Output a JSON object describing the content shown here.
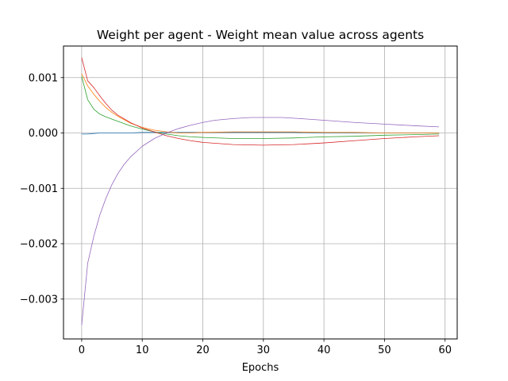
{
  "chart_data": {
    "type": "line",
    "title": "Weight per agent - Weight mean value across agents",
    "xlabel": "Epochs",
    "ylabel": "",
    "xlim": [
      -3,
      62
    ],
    "ylim": [
      -0.00372,
      0.00157
    ],
    "x_ticks": [
      0,
      10,
      20,
      30,
      40,
      50,
      60
    ],
    "x_tick_labels": [
      "0",
      "10",
      "20",
      "30",
      "40",
      "50",
      "60"
    ],
    "y_ticks": [
      -0.003,
      -0.002,
      -0.001,
      0.0,
      0.001
    ],
    "y_tick_labels": [
      "−0.003",
      "−0.002",
      "−0.001",
      "0.000",
      "0.001"
    ],
    "grid": true,
    "legend": "none",
    "series": [
      {
        "color": "#1f77b4",
        "x": [
          0,
          1,
          2,
          3,
          4,
          5,
          6,
          8,
          10,
          12,
          14,
          16,
          18,
          20,
          25,
          30,
          35,
          40,
          45,
          50,
          55,
          59
        ],
        "values": [
          -2e-05,
          -2e-05,
          -1e-05,
          0.0,
          0.0,
          0.0,
          0.0,
          0.0,
          1e-05,
          1e-05,
          1e-05,
          1e-05,
          1e-05,
          1e-05,
          1e-05,
          1e-05,
          1e-05,
          0.0,
          0.0,
          0.0,
          0.0,
          0.0
        ]
      },
      {
        "color": "#ff7f0e",
        "x": [
          0,
          1,
          2,
          3,
          4,
          5,
          6,
          8,
          10,
          12,
          14,
          16,
          18,
          20,
          25,
          30,
          35,
          40,
          45,
          50,
          55,
          59
        ],
        "values": [
          0.00107,
          0.00085,
          0.0007,
          0.00057,
          0.00046,
          0.00037,
          0.0003,
          0.00018,
          0.0001,
          5e-05,
          2e-05,
          0.0,
          0.0,
          1e-05,
          2e-05,
          2e-05,
          2e-05,
          1e-05,
          1e-05,
          0.0,
          0.0,
          0.0
        ]
      },
      {
        "color": "#2ca02c",
        "x": [
          0,
          1,
          2,
          3,
          4,
          5,
          6,
          8,
          10,
          12,
          14,
          16,
          18,
          20,
          25,
          30,
          35,
          40,
          45,
          50,
          55,
          59
        ],
        "values": [
          0.00102,
          0.0006,
          0.00043,
          0.00034,
          0.00029,
          0.00025,
          0.00021,
          0.00013,
          7e-05,
          2e-05,
          -2e-05,
          -5e-05,
          -7e-05,
          -8e-05,
          -0.0001,
          -0.0001,
          -9e-05,
          -7e-05,
          -6e-05,
          -4e-05,
          -3e-05,
          -2e-05
        ]
      },
      {
        "color": "#d62728",
        "x": [
          0,
          1,
          2,
          3,
          4,
          5,
          6,
          8,
          10,
          12,
          14,
          16,
          18,
          20,
          25,
          30,
          35,
          40,
          45,
          50,
          55,
          59
        ],
        "values": [
          0.00136,
          0.00094,
          0.00082,
          0.00067,
          0.00053,
          0.00041,
          0.00032,
          0.00019,
          9e-05,
          2e-05,
          -5e-05,
          -0.0001,
          -0.00014,
          -0.00017,
          -0.00021,
          -0.00022,
          -0.00021,
          -0.00018,
          -0.00014,
          -0.0001,
          -7e-05,
          -5e-05
        ]
      },
      {
        "color": "#9467bd",
        "x": [
          0,
          1,
          2,
          3,
          4,
          5,
          6,
          7,
          8,
          10,
          12,
          14,
          16,
          18,
          20,
          22,
          25,
          28,
          30,
          33,
          36,
          40,
          45,
          50,
          55,
          59
        ],
        "values": [
          -0.00347,
          -0.00235,
          -0.00187,
          -0.00148,
          -0.00118,
          -0.00093,
          -0.00073,
          -0.00057,
          -0.00044,
          -0.00024,
          -0.0001,
          0.0,
          8e-05,
          0.00014,
          0.00019,
          0.00023,
          0.00026,
          0.00028,
          0.00028,
          0.00028,
          0.00026,
          0.00023,
          0.00019,
          0.00016,
          0.00013,
          0.00011
        ]
      }
    ]
  }
}
